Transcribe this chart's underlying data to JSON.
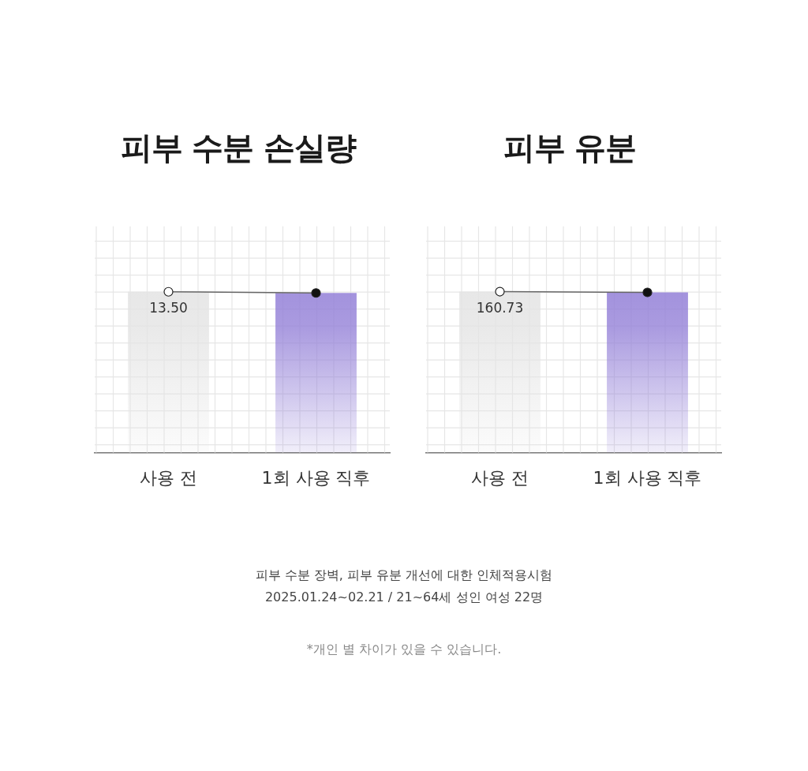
{
  "chart_data": [
    {
      "type": "bar",
      "title": "피부 수분 손실량",
      "categories": [
        "사용 전",
        "1회 사용 직후"
      ],
      "ylim": [
        0,
        19
      ],
      "tick_labels": "x",
      "grid": true,
      "legend": false,
      "series": [
        {
          "values": [
            13.5,
            13.4
          ],
          "colors": [
            "#e4e4e4",
            "#9582d8"
          ],
          "value_labels": [
            "13.50",
            null
          ]
        },
        {
          "type": "line",
          "values": [
            13.5,
            13.4
          ],
          "colors": [
            "#ffffff",
            "#111111"
          ],
          "color": "#666666",
          "marker": "circle"
        }
      ]
    },
    {
      "type": "bar",
      "title": "피부 유분",
      "categories": [
        "사용 전",
        "1회 사용 직후"
      ],
      "ylim": [
        0,
        226
      ],
      "tick_labels": "x",
      "grid": true,
      "legend": false,
      "series": [
        {
          "values": [
            160.73,
            160
          ],
          "colors": [
            "#e4e4e4",
            "#9582d8"
          ],
          "value_labels": [
            "160.73",
            null
          ]
        },
        {
          "type": "line",
          "values": [
            160.73,
            160
          ],
          "colors": [
            "#ffffff",
            "#111111"
          ],
          "color": "#666666",
          "marker": "circle"
        }
      ],
      "annotations": [
        "피부 수분 장벽, 피부 유분 개선에 대한 인체적용시험",
        "2025.01.24~02.21 / 21~64세 성인 여성 22명",
        "*개인 별 차이가 있을 수 있습니다."
      ]
    }
  ]
}
